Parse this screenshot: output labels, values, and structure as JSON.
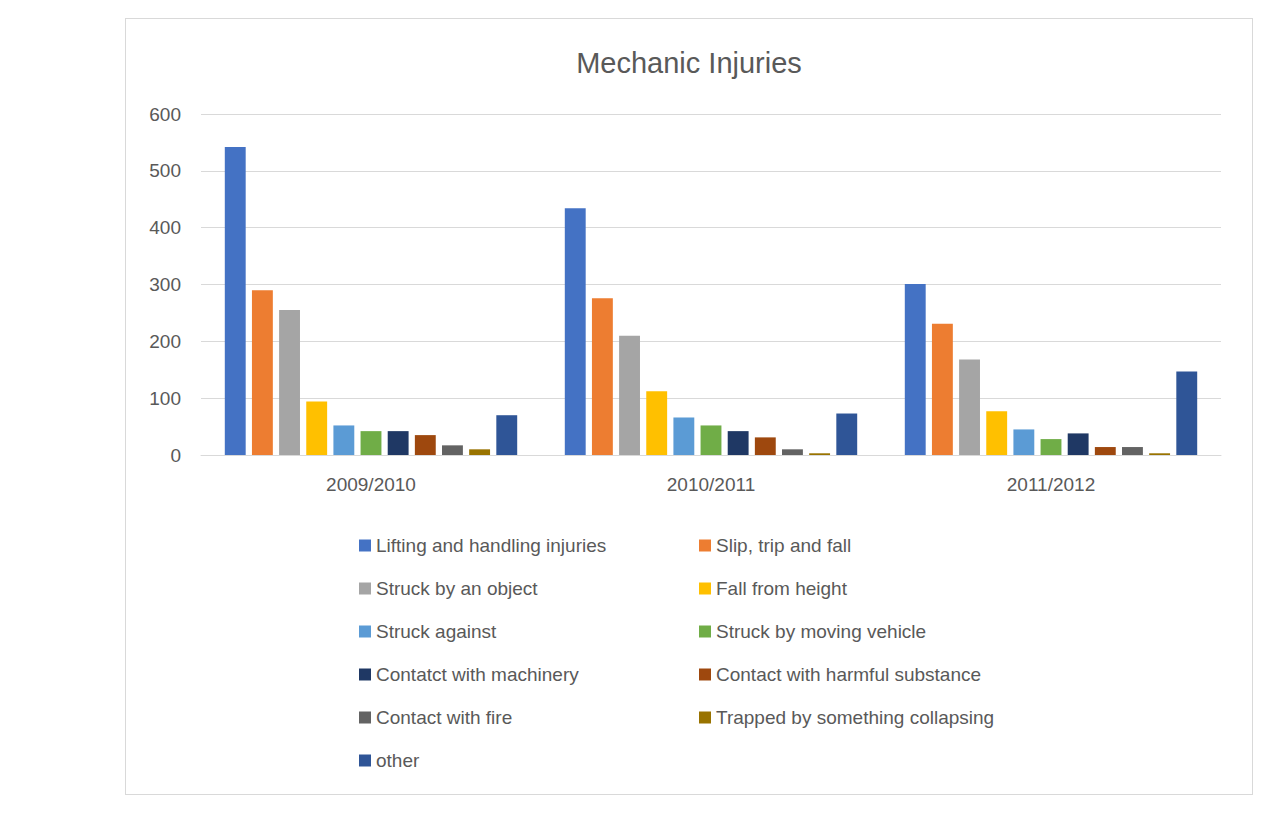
{
  "chart_data": {
    "type": "bar",
    "title": "Mechanic Injuries",
    "categories": [
      "2009/2010",
      "2010/2011",
      "2011/2012"
    ],
    "series": [
      {
        "name": "Lifting and handling injuries",
        "color": "#4472c4",
        "values": [
          542,
          434,
          301
        ]
      },
      {
        "name": "Slip, trip and fall",
        "color": "#ed7d31",
        "values": [
          290,
          276,
          231
        ]
      },
      {
        "name": "Struck by an object",
        "color": "#a5a5a5",
        "values": [
          255,
          210,
          168
        ]
      },
      {
        "name": "Fall from height",
        "color": "#ffc000",
        "values": [
          94,
          112,
          77
        ]
      },
      {
        "name": "Struck against",
        "color": "#5b9bd5",
        "values": [
          52,
          66,
          45
        ]
      },
      {
        "name": "Struck by moving vehicle",
        "color": "#70ad47",
        "values": [
          42,
          52,
          28
        ]
      },
      {
        "name": "Contatct with machinery",
        "color": "#1f3864",
        "values": [
          42,
          42,
          38
        ]
      },
      {
        "name": "Contact with harmful substance",
        "color": "#9e480e",
        "values": [
          35,
          31,
          14
        ]
      },
      {
        "name": "Contact with fire",
        "color": "#636363",
        "values": [
          17,
          10,
          14
        ]
      },
      {
        "name": "Trapped by something collapsing",
        "color": "#997300",
        "values": [
          10,
          3,
          3
        ]
      },
      {
        "name": "other",
        "color": "#2f5597",
        "values": [
          70,
          73,
          147
        ]
      }
    ],
    "ylim": [
      0,
      600
    ],
    "yticks": [
      0,
      100,
      200,
      300,
      400,
      500,
      600
    ],
    "grid": true,
    "legend": "bottom"
  }
}
